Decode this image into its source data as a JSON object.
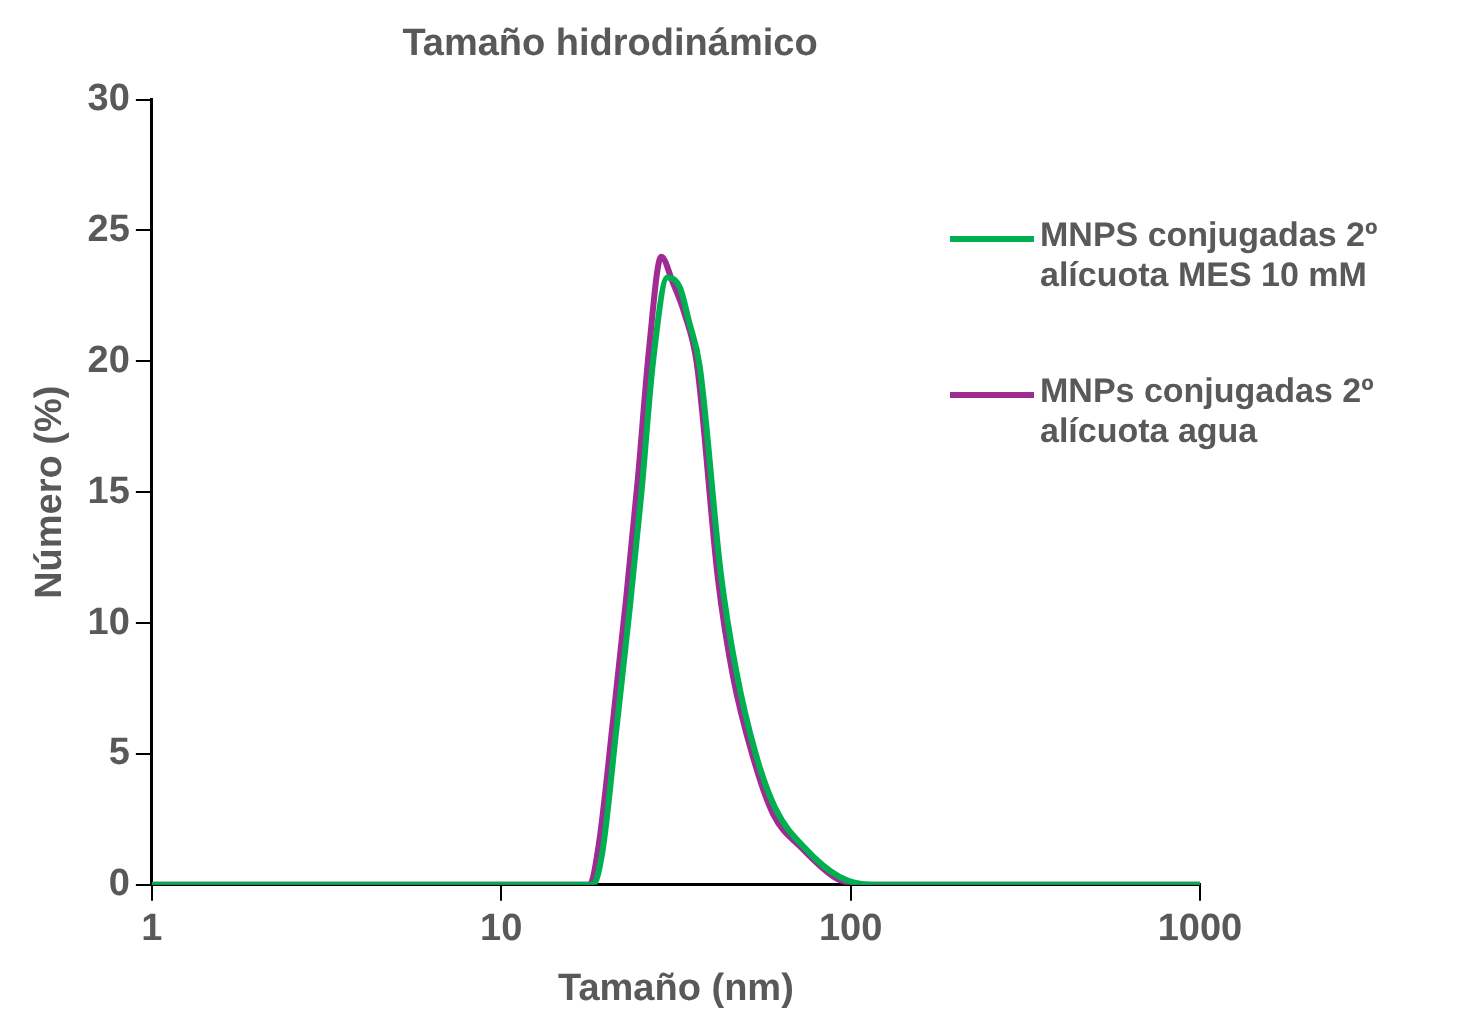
{
  "chart_data": {
    "type": "line",
    "title": "Tamaño hidrodinámico",
    "xlabel": "Tamaño (nm)",
    "ylabel": "Número (%)",
    "log": "x",
    "xlim": [
      1,
      1000
    ],
    "xticks": [
      1,
      10,
      100,
      1000
    ],
    "ylim": [
      0,
      30
    ],
    "yticks": [
      0,
      5,
      10,
      15,
      20,
      25,
      30
    ],
    "grid": false,
    "legend": "right",
    "marker": "none",
    "line_style": "solid",
    "series": [
      {
        "name": "MNPS conjugadas 2º alícuota MES 10 mM",
        "color": "#00b050",
        "x": [
          1,
          18.3,
          19.5,
          21.3,
          23.3,
          25.2,
          27.2,
          29.9,
          32.5,
          34.5,
          37,
          42.5,
          47,
          53.5,
          61,
          74,
          93,
          115,
          1000
        ],
        "values": [
          0,
          0,
          1.3,
          5.8,
          10.5,
          15,
          20,
          23.2,
          22.8,
          21.5,
          19.8,
          11.9,
          8.2,
          5,
          2.9,
          1.4,
          0.3,
          0,
          0
        ]
      },
      {
        "name": "MNPs conjugadas 2º alícuota agua",
        "color": "#a02b93",
        "x": [
          1,
          17.9,
          19,
          20.9,
          22.8,
          24.6,
          26.5,
          28.7,
          31,
          33.5,
          36.3,
          41.7,
          46,
          52.5,
          60,
          72.5,
          91,
          110,
          1000
        ],
        "values": [
          0,
          0,
          1.5,
          6.3,
          11,
          15.5,
          20.5,
          24,
          23,
          21.8,
          19.9,
          11.7,
          8,
          4.9,
          2.7,
          1.4,
          0.25,
          0,
          0
        ]
      }
    ]
  }
}
